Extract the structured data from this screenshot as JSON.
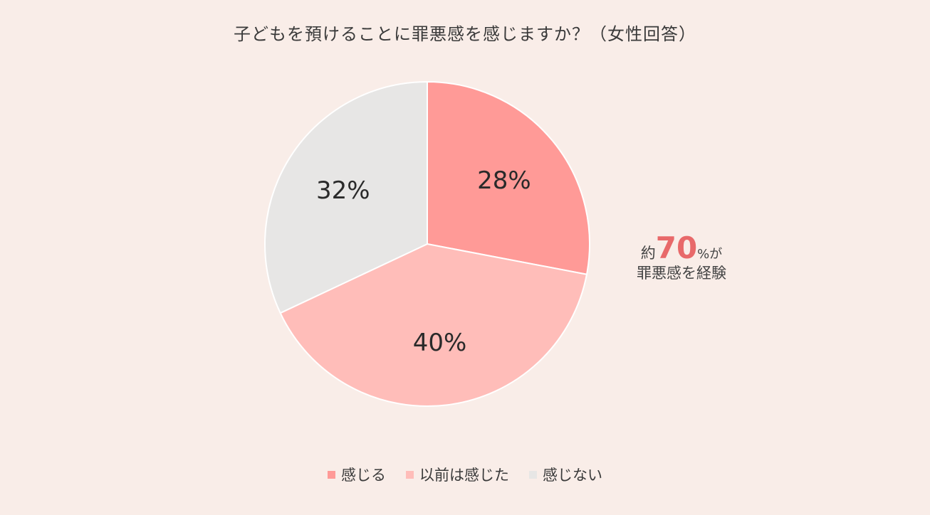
{
  "chart_data": {
    "type": "pie",
    "title": "子どもを預けることに罪悪感を感じますか？（女性回答）",
    "slices": [
      {
        "name": "感じる",
        "value": 28,
        "label": "28%",
        "color": "#ff9a97"
      },
      {
        "name": "以前は感じた",
        "value": 40,
        "label": "40%",
        "color": "#ffbdb9"
      },
      {
        "name": "感じない",
        "value": 32,
        "label": "32%",
        "color": "#e7e6e5"
      }
    ],
    "start_angle_deg": 0,
    "direction": "clockwise",
    "legend_position": "bottom",
    "annotation": {
      "prefix": "約",
      "number": "70",
      "unit": "%が",
      "line2": "罪悪感を経験",
      "color": "#e8696a"
    }
  }
}
